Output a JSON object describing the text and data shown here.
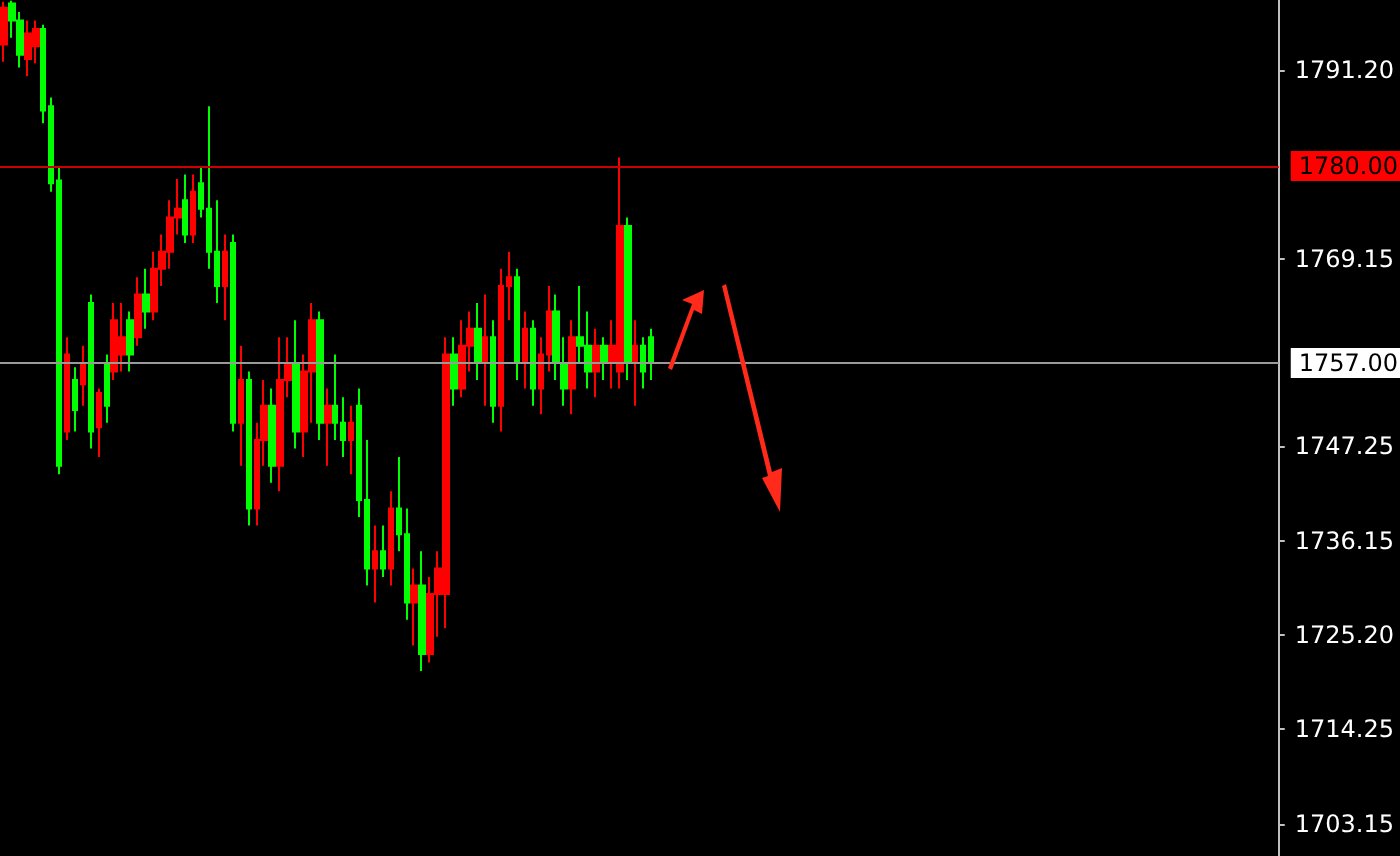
{
  "chart_data": {
    "type": "candlestick",
    "categories": [
      null,
      null,
      null,
      null,
      null,
      null,
      null,
      null,
      null,
      null,
      null,
      null,
      null,
      null,
      null,
      null,
      null,
      null,
      null,
      null,
      null,
      null,
      null,
      null,
      null,
      null,
      null,
      null,
      null,
      null,
      null,
      null,
      null,
      null,
      null,
      null,
      null,
      null,
      null,
      null,
      null,
      null,
      null,
      null,
      null,
      null,
      null,
      null,
      null,
      null,
      null,
      null,
      null,
      null,
      null,
      null,
      null,
      null,
      null,
      null,
      null,
      null,
      null,
      null,
      null,
      null,
      null,
      null,
      null,
      null,
      null,
      null,
      null,
      null,
      null,
      null,
      null,
      null,
      null,
      null,
      null,
      null,
      null,
      null,
      null,
      null,
      null,
      null,
      null,
      null,
      null,
      null,
      null,
      null,
      null,
      null,
      null,
      null,
      null,
      null,
      null,
      null,
      null,
      null,
      null,
      null,
      null,
      null,
      null,
      null,
      null,
      null,
      null,
      null,
      null,
      null,
      null,
      null,
      null,
      null,
      null,
      null,
      null,
      null,
      null,
      null,
      null,
      null,
      null,
      null,
      null,
      null,
      null,
      null,
      null,
      null,
      null,
      null,
      null,
      null,
      null,
      null,
      null,
      null,
      null,
      null,
      null,
      null,
      null,
      null,
      null,
      null,
      null,
      null,
      null,
      null,
      null,
      null,
      null,
      null,
      null,
      null
    ],
    "ohlc": [
      [
        1794.2,
        1799.2,
        1792.2,
        1798.5
      ],
      [
        1799.0,
        1799.3,
        1795.0,
        1797.0
      ],
      [
        1797.0,
        1798.0,
        1791.5,
        1793.0
      ],
      [
        1792.5,
        1797.0,
        1790.5,
        1795.5
      ],
      [
        1794.0,
        1797.0,
        1792.0,
        1796.0
      ],
      [
        1796.0,
        1796.5,
        1785.0,
        1786.5
      ],
      [
        1787.0,
        1788.0,
        1777.0,
        1778.0
      ],
      [
        1778.3,
        1780.0,
        1744.0,
        1745.0
      ],
      [
        1749.0,
        1760.0,
        1748.0,
        1758.0
      ],
      [
        1755.0,
        1756.5,
        1749.0,
        1751.5
      ],
      [
        1754.5,
        1759.0,
        1752.0,
        1757.0
      ],
      [
        1764.0,
        1765.0,
        1747.0,
        1749.0
      ],
      [
        1749.5,
        1754.0,
        1746.0,
        1753.5
      ],
      [
        1757.0,
        1758.0,
        1750.0,
        1752.0
      ],
      [
        1756.0,
        1764.0,
        1755.0,
        1762.0
      ],
      [
        1758.0,
        1764.0,
        1756.0,
        1760.0
      ],
      [
        1762.0,
        1763.0,
        1756.0,
        1758.0
      ],
      [
        1760.0,
        1767.0,
        1759.0,
        1765.0
      ],
      [
        1765.0,
        1768.0,
        1761.0,
        1763.0
      ],
      [
        1763.0,
        1770.0,
        1762.0,
        1768.0
      ],
      [
        1768.0,
        1772.0,
        1766.0,
        1770.0
      ],
      [
        1770.0,
        1776.0,
        1768.0,
        1774.0
      ],
      [
        1774.0,
        1778.5,
        1772.0,
        1775.0
      ],
      [
        1776.0,
        1779.0,
        1771.0,
        1772.0
      ],
      [
        1772.0,
        1779.0,
        1771.0,
        1777.0
      ],
      [
        1778.0,
        1780.0,
        1774.0,
        1775.0
      ],
      [
        1775.0,
        1787.0,
        1768.0,
        1770.0
      ],
      [
        1770.0,
        1776.0,
        1764.0,
        1766.0
      ],
      [
        1766.0,
        1772.0,
        1762.0,
        1770.0
      ],
      [
        1771.0,
        1772.0,
        1749.0,
        1750.0
      ],
      [
        1750.0,
        1759.0,
        1745.0,
        1755.0
      ],
      [
        1755.0,
        1756.0,
        1738.0,
        1740.0
      ],
      [
        1740.0,
        1750.0,
        1738.0,
        1748.0
      ],
      [
        1748.0,
        1755.0,
        1745.0,
        1752.0
      ],
      [
        1752.0,
        1754.0,
        1743.0,
        1745.0
      ],
      [
        1745.0,
        1760.0,
        1742.0,
        1755.0
      ],
      [
        1755.0,
        1760.0,
        1753.0,
        1757.0
      ],
      [
        1757.0,
        1762.0,
        1747.0,
        1749.0
      ],
      [
        1749.0,
        1758.0,
        1746.0,
        1756.0
      ],
      [
        1756.0,
        1764.0,
        1750.0,
        1762.0
      ],
      [
        1762.0,
        1763.0,
        1748.0,
        1750.0
      ],
      [
        1750.0,
        1754.0,
        1745.0,
        1752.0
      ],
      [
        1752.0,
        1758.0,
        1748.0,
        1750.0
      ],
      [
        1750.0,
        1753.0,
        1746.0,
        1748.0
      ],
      [
        1748.0,
        1752.0,
        1744.0,
        1750.0
      ],
      [
        1752.0,
        1754.0,
        1739.0,
        1741.0
      ],
      [
        1741.0,
        1748.0,
        1731.0,
        1733.0
      ],
      [
        1733.0,
        1738.0,
        1729.0,
        1735.0
      ],
      [
        1735.0,
        1738.0,
        1732.0,
        1733.0
      ],
      [
        1733.0,
        1742.0,
        1731.0,
        1740.0
      ],
      [
        1740.0,
        1746.0,
        1735.0,
        1737.0
      ],
      [
        1737.0,
        1740.0,
        1727.0,
        1729.0
      ],
      [
        1729.0,
        1733.0,
        1724.0,
        1731.0
      ],
      [
        1731.0,
        1735.0,
        1721.0,
        1723.0
      ],
      [
        1723.0,
        1732.0,
        1722.0,
        1730.0
      ],
      [
        1730.0,
        1735.0,
        1725.0,
        1733.0
      ],
      [
        1730.0,
        1760.0,
        1726.0,
        1758.0
      ],
      [
        1758.0,
        1760.0,
        1752.0,
        1754.0
      ],
      [
        1754.0,
        1762.0,
        1753.0,
        1759.0
      ],
      [
        1759.0,
        1763.0,
        1756.0,
        1761.0
      ],
      [
        1761.0,
        1764.0,
        1755.0,
        1757.0
      ],
      [
        1757.0,
        1765.0,
        1752.0,
        1760.0
      ],
      [
        1760.0,
        1762.0,
        1750.0,
        1752.0
      ],
      [
        1752.0,
        1768.0,
        1749.0,
        1766.0
      ],
      [
        1766.0,
        1770.0,
        1762.0,
        1767.0
      ],
      [
        1767.0,
        1768.0,
        1755.0,
        1757.0
      ],
      [
        1757.0,
        1763.0,
        1754.0,
        1761.0
      ],
      [
        1761.0,
        1762.0,
        1752.0,
        1754.0
      ],
      [
        1754.0,
        1760.0,
        1751.0,
        1758.0
      ],
      [
        1758.0,
        1766.0,
        1756.0,
        1763.0
      ],
      [
        1763.0,
        1765.0,
        1755.0,
        1757.0
      ],
      [
        1757.0,
        1760.0,
        1752.0,
        1754.0
      ],
      [
        1754.0,
        1762.0,
        1751.0,
        1760.0
      ],
      [
        1760.0,
        1766.0,
        1757.0,
        1759.0
      ],
      [
        1759.0,
        1763.0,
        1754.0,
        1756.0
      ],
      [
        1756.0,
        1761.0,
        1753.0,
        1759.0
      ],
      [
        1759.0,
        1760.0,
        1755.0,
        1757.0
      ],
      [
        1757.0,
        1762.0,
        1754.0,
        1759.0
      ],
      [
        1756.0,
        1781.0,
        1754.0,
        1773.0
      ],
      [
        1773.0,
        1774.0,
        1755.0,
        1757.0
      ],
      [
        1757.0,
        1762.0,
        1752.0,
        1759.0
      ],
      [
        1759.0,
        1760.0,
        1754.0,
        1756.0
      ],
      [
        1760.0,
        1761.0,
        1755.0,
        1757.0
      ],
      null,
      null,
      null,
      null,
      null,
      null,
      null,
      null,
      null,
      null,
      null,
      null,
      null,
      null,
      null,
      null,
      null,
      null,
      null,
      null,
      null,
      null,
      null,
      null,
      null,
      null,
      null,
      null,
      null,
      null,
      null,
      null,
      null,
      null,
      null,
      null,
      null,
      null,
      null,
      null,
      null,
      null,
      null,
      null,
      null,
      null,
      null,
      null,
      null,
      null,
      null,
      null,
      null,
      null,
      null,
      null,
      null,
      null,
      null,
      null,
      null,
      null,
      null,
      null,
      null,
      null,
      null,
      null,
      null,
      null,
      null,
      null,
      null,
      null,
      null,
      null,
      null,
      null,
      null
    ],
    "colors": [
      "#ff0000",
      "#00ff00",
      "#00ff00",
      "#ff0000",
      "#ff0000",
      "#00ff00",
      "#00ff00",
      "#00ff00",
      "#ff0000",
      "#00ff00",
      "#ff0000",
      "#00ff00",
      "#ff0000",
      "#00ff00",
      "#ff0000",
      "#ff0000",
      "#00ff00",
      "#ff0000",
      "#00ff00",
      "#ff0000",
      "#ff0000",
      "#ff0000",
      "#ff0000",
      "#00ff00",
      "#ff0000",
      "#00ff00",
      "#00ff00",
      "#00ff00",
      "#ff0000",
      "#00ff00",
      "#ff0000",
      "#00ff00",
      "#ff0000",
      "#ff0000",
      "#00ff00",
      "#ff0000",
      "#ff0000",
      "#00ff00",
      "#ff0000",
      "#ff0000",
      "#00ff00",
      "#ff0000",
      "#00ff00",
      "#00ff00",
      "#ff0000",
      "#00ff00",
      "#00ff00",
      "#ff0000",
      "#00ff00",
      "#ff0000",
      "#00ff00",
      "#00ff00",
      "#ff0000",
      "#00ff00",
      "#ff0000",
      "#ff0000",
      "#ff0000",
      "#00ff00",
      "#ff0000",
      "#ff0000",
      "#00ff00",
      "#ff0000",
      "#00ff00",
      "#ff0000",
      "#ff0000",
      "#00ff00",
      "#ff0000",
      "#00ff00",
      "#ff0000",
      "#ff0000",
      "#00ff00",
      "#00ff00",
      "#ff0000",
      "#00ff00",
      "#00ff00",
      "#ff0000",
      "#00ff00",
      "#ff0000",
      "#ff0000",
      "#00ff00",
      "#ff0000",
      "#00ff00",
      "#00ff00",
      null,
      null,
      null,
      null,
      null,
      null,
      null,
      null,
      null,
      null,
      null,
      null,
      null,
      null,
      null,
      null,
      null,
      null,
      null,
      null,
      null,
      null,
      null,
      null,
      null,
      null,
      null,
      null,
      null,
      null,
      null,
      null,
      null,
      null,
      null,
      null,
      null,
      null,
      null,
      null,
      null,
      null,
      null,
      null,
      null,
      null,
      null,
      null,
      null,
      null,
      null,
      null,
      null,
      null,
      null,
      null,
      null,
      null,
      null,
      null,
      null,
      null,
      null,
      null,
      null,
      null,
      null,
      null,
      null,
      null,
      null,
      null,
      null,
      null,
      null,
      null,
      null,
      null,
      null
    ],
    "ylim": [
      1699.4,
      1799.4
    ],
    "yticks": [
      {
        "value": 1703.15,
        "label": "1703.15"
      },
      {
        "value": 1714.25,
        "label": "1714.25"
      },
      {
        "value": 1725.2,
        "label": "1725.20"
      },
      {
        "value": 1736.15,
        "label": "1736.15"
      },
      {
        "value": 1747.25,
        "label": "1747.25"
      },
      {
        "value": 1769.15,
        "label": "1769.15"
      },
      {
        "value": 1791.2,
        "label": "1791.20"
      }
    ],
    "ref_lines": [
      {
        "axis": "y",
        "value": 1780,
        "label": "1780.00",
        "color": "#cc0000"
      },
      {
        "axis": "y",
        "value": 1757,
        "label": "1757.00",
        "color": "#9a9a9a"
      }
    ],
    "grid": false
  }
}
